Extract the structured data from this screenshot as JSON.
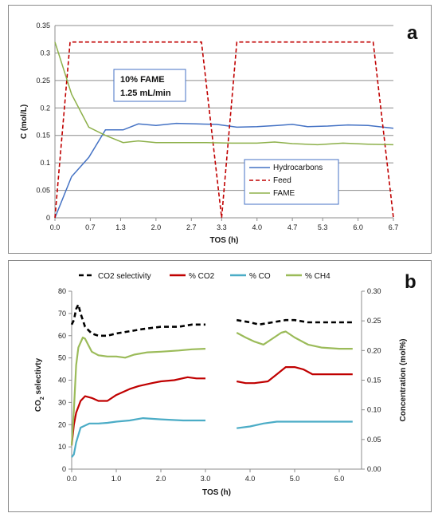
{
  "chart_data": [
    {
      "panel_label": "a",
      "type": "line",
      "xlabel": "TOS (h)",
      "ylabel": "C (mol/L)",
      "xlim": [
        0,
        6.7
      ],
      "ylim": [
        0,
        0.35
      ],
      "x_ticks": [
        "0.0",
        "0.7",
        "1.3",
        "2.0",
        "2.7",
        "3.3",
        "4.0",
        "4.7",
        "5.3",
        "6.0",
        "6.7"
      ],
      "y_ticks": [
        "0",
        "0.05",
        "0.1",
        "0.15",
        "0.2",
        "0.25",
        "0.3",
        "0.35"
      ],
      "grid": "horizontal",
      "legend_placement": "bottom-right",
      "annotation_lines": [
        "10% FAME",
        "1.25 mL/min"
      ],
      "series": [
        {
          "name": "Hydrocarbons",
          "color": "#4472c4",
          "dash": "solid",
          "points": [
            [
              0,
              0
            ],
            [
              0.33,
              0.075
            ],
            [
              0.67,
              0.11
            ],
            [
              1.0,
              0.16
            ],
            [
              1.35,
              0.16
            ],
            [
              1.65,
              0.171
            ],
            [
              2.0,
              0.168
            ],
            [
              2.4,
              0.172
            ],
            [
              2.8,
              0.171
            ],
            [
              3.2,
              0.17
            ],
            [
              3.6,
              0.165
            ],
            [
              4.0,
              0.166
            ],
            [
              4.4,
              0.168
            ],
            [
              4.7,
              0.17
            ],
            [
              5.0,
              0.166
            ],
            [
              5.4,
              0.167
            ],
            [
              5.8,
              0.169
            ],
            [
              6.2,
              0.168
            ],
            [
              6.7,
              0.163
            ]
          ]
        },
        {
          "name": "Feed",
          "color": "#c00000",
          "dash": "dashed",
          "points": [
            [
              0,
              0
            ],
            [
              0.3,
              0.32
            ],
            [
              2.9,
              0.32
            ],
            [
              3.3,
              0
            ],
            [
              3.6,
              0.32
            ],
            [
              6.3,
              0.32
            ],
            [
              6.7,
              0
            ]
          ]
        },
        {
          "name": "FAME",
          "color": "#8db04a",
          "dash": "solid",
          "points": [
            [
              0,
              0.32
            ],
            [
              0.33,
              0.225
            ],
            [
              0.67,
              0.165
            ],
            [
              1.0,
              0.15
            ],
            [
              1.35,
              0.137
            ],
            [
              1.65,
              0.14
            ],
            [
              2.0,
              0.137
            ],
            [
              2.5,
              0.137
            ],
            [
              3.0,
              0.137
            ],
            [
              3.5,
              0.136
            ],
            [
              4.0,
              0.136
            ],
            [
              4.35,
              0.138
            ],
            [
              4.7,
              0.135
            ],
            [
              5.2,
              0.133
            ],
            [
              5.7,
              0.136
            ],
            [
              6.2,
              0.134
            ],
            [
              6.7,
              0.133
            ]
          ]
        }
      ]
    },
    {
      "panel_label": "b",
      "type": "line",
      "xlabel": "TOS (h)",
      "ylabel_left_parts": [
        "CO",
        "2",
        " selectivty"
      ],
      "ylabel_right": "Concentration (mol%)",
      "xlim": [
        0,
        6.5
      ],
      "ylim_left": [
        0,
        80
      ],
      "ylim_right": [
        0,
        0.3
      ],
      "x_ticks": [
        "0.0",
        "1.0",
        "2.0",
        "3.0",
        "4.0",
        "5.0",
        "6.0"
      ],
      "y_ticks_left": [
        "0",
        "10",
        "20",
        "30",
        "40",
        "50",
        "60",
        "70",
        "80"
      ],
      "y_ticks_right": [
        "0.00",
        "0.05",
        "0.10",
        "0.15",
        "0.20",
        "0.25",
        "0.30"
      ],
      "grid": "none",
      "legend_placement": "top",
      "series": [
        {
          "name": "CO2 selectivity",
          "axis": "left",
          "color": "#000000",
          "dash": "dashed",
          "segments": [
            [
              [
                0,
                65
              ],
              [
                0.05,
                67
              ],
              [
                0.1,
                72
              ],
              [
                0.15,
                74
              ],
              [
                0.2,
                70
              ],
              [
                0.3,
                64
              ],
              [
                0.45,
                61
              ],
              [
                0.6,
                60
              ],
              [
                0.8,
                60
              ],
              [
                1.0,
                61
              ],
              [
                1.3,
                62
              ],
              [
                1.6,
                63
              ],
              [
                2.0,
                64
              ],
              [
                2.4,
                64
              ],
              [
                2.7,
                65
              ],
              [
                3.0,
                65
              ]
            ],
            [
              [
                3.7,
                67
              ],
              [
                4.0,
                66
              ],
              [
                4.2,
                65
              ],
              [
                4.5,
                66
              ],
              [
                4.8,
                67
              ],
              [
                5.0,
                67
              ],
              [
                5.3,
                66
              ],
              [
                5.6,
                66
              ],
              [
                6.0,
                66
              ],
              [
                6.3,
                66
              ]
            ]
          ]
        },
        {
          "name": "% CO2",
          "axis": "right",
          "color": "#c00000",
          "dash": "solid",
          "segments": [
            [
              [
                0,
                0.04
              ],
              [
                0.05,
                0.075
              ],
              [
                0.1,
                0.095
              ],
              [
                0.2,
                0.115
              ],
              [
                0.3,
                0.123
              ],
              [
                0.45,
                0.12
              ],
              [
                0.6,
                0.115
              ],
              [
                0.8,
                0.115
              ],
              [
                1.0,
                0.125
              ],
              [
                1.3,
                0.135
              ],
              [
                1.5,
                0.14
              ],
              [
                1.8,
                0.145
              ],
              [
                2.0,
                0.148
              ],
              [
                2.3,
                0.15
              ],
              [
                2.6,
                0.155
              ],
              [
                2.8,
                0.153
              ],
              [
                3.0,
                0.153
              ]
            ],
            [
              [
                3.7,
                0.148
              ],
              [
                3.9,
                0.145
              ],
              [
                4.1,
                0.145
              ],
              [
                4.4,
                0.148
              ],
              [
                4.6,
                0.16
              ],
              [
                4.8,
                0.172
              ],
              [
                5.0,
                0.172
              ],
              [
                5.2,
                0.168
              ],
              [
                5.4,
                0.16
              ],
              [
                5.8,
                0.16
              ],
              [
                6.3,
                0.16
              ]
            ]
          ]
        },
        {
          "name": "% CO",
          "axis": "right",
          "color": "#4bacc6",
          "dash": "solid",
          "segments": [
            [
              [
                0,
                0.02
              ],
              [
                0.05,
                0.025
              ],
              [
                0.1,
                0.045
              ],
              [
                0.2,
                0.07
              ],
              [
                0.4,
                0.077
              ],
              [
                0.6,
                0.077
              ],
              [
                0.8,
                0.078
              ],
              [
                1.0,
                0.08
              ],
              [
                1.3,
                0.082
              ],
              [
                1.6,
                0.086
              ],
              [
                2.0,
                0.084
              ],
              [
                2.5,
                0.082
              ],
              [
                3.0,
                0.082
              ]
            ],
            [
              [
                3.7,
                0.069
              ],
              [
                4.0,
                0.072
              ],
              [
                4.3,
                0.077
              ],
              [
                4.6,
                0.08
              ],
              [
                5.0,
                0.08
              ],
              [
                5.5,
                0.08
              ],
              [
                6.0,
                0.08
              ],
              [
                6.3,
                0.08
              ]
            ]
          ]
        },
        {
          "name": "% CH4",
          "axis": "right",
          "color": "#9bbb59",
          "dash": "solid",
          "segments": [
            [
              [
                0,
                0.04
              ],
              [
                0.05,
                0.1
              ],
              [
                0.1,
                0.175
              ],
              [
                0.15,
                0.205
              ],
              [
                0.25,
                0.222
              ],
              [
                0.3,
                0.22
              ],
              [
                0.45,
                0.198
              ],
              [
                0.6,
                0.192
              ],
              [
                0.8,
                0.19
              ],
              [
                1.0,
                0.19
              ],
              [
                1.2,
                0.188
              ],
              [
                1.4,
                0.193
              ],
              [
                1.7,
                0.197
              ],
              [
                2.0,
                0.198
              ],
              [
                2.4,
                0.2
              ],
              [
                2.7,
                0.202
              ],
              [
                3.0,
                0.203
              ]
            ],
            [
              [
                3.7,
                0.23
              ],
              [
                3.9,
                0.222
              ],
              [
                4.1,
                0.215
              ],
              [
                4.3,
                0.21
              ],
              [
                4.5,
                0.22
              ],
              [
                4.7,
                0.23
              ],
              [
                4.8,
                0.232
              ],
              [
                5.0,
                0.222
              ],
              [
                5.3,
                0.21
              ],
              [
                5.6,
                0.205
              ],
              [
                6.0,
                0.203
              ],
              [
                6.3,
                0.203
              ]
            ]
          ]
        }
      ]
    }
  ]
}
